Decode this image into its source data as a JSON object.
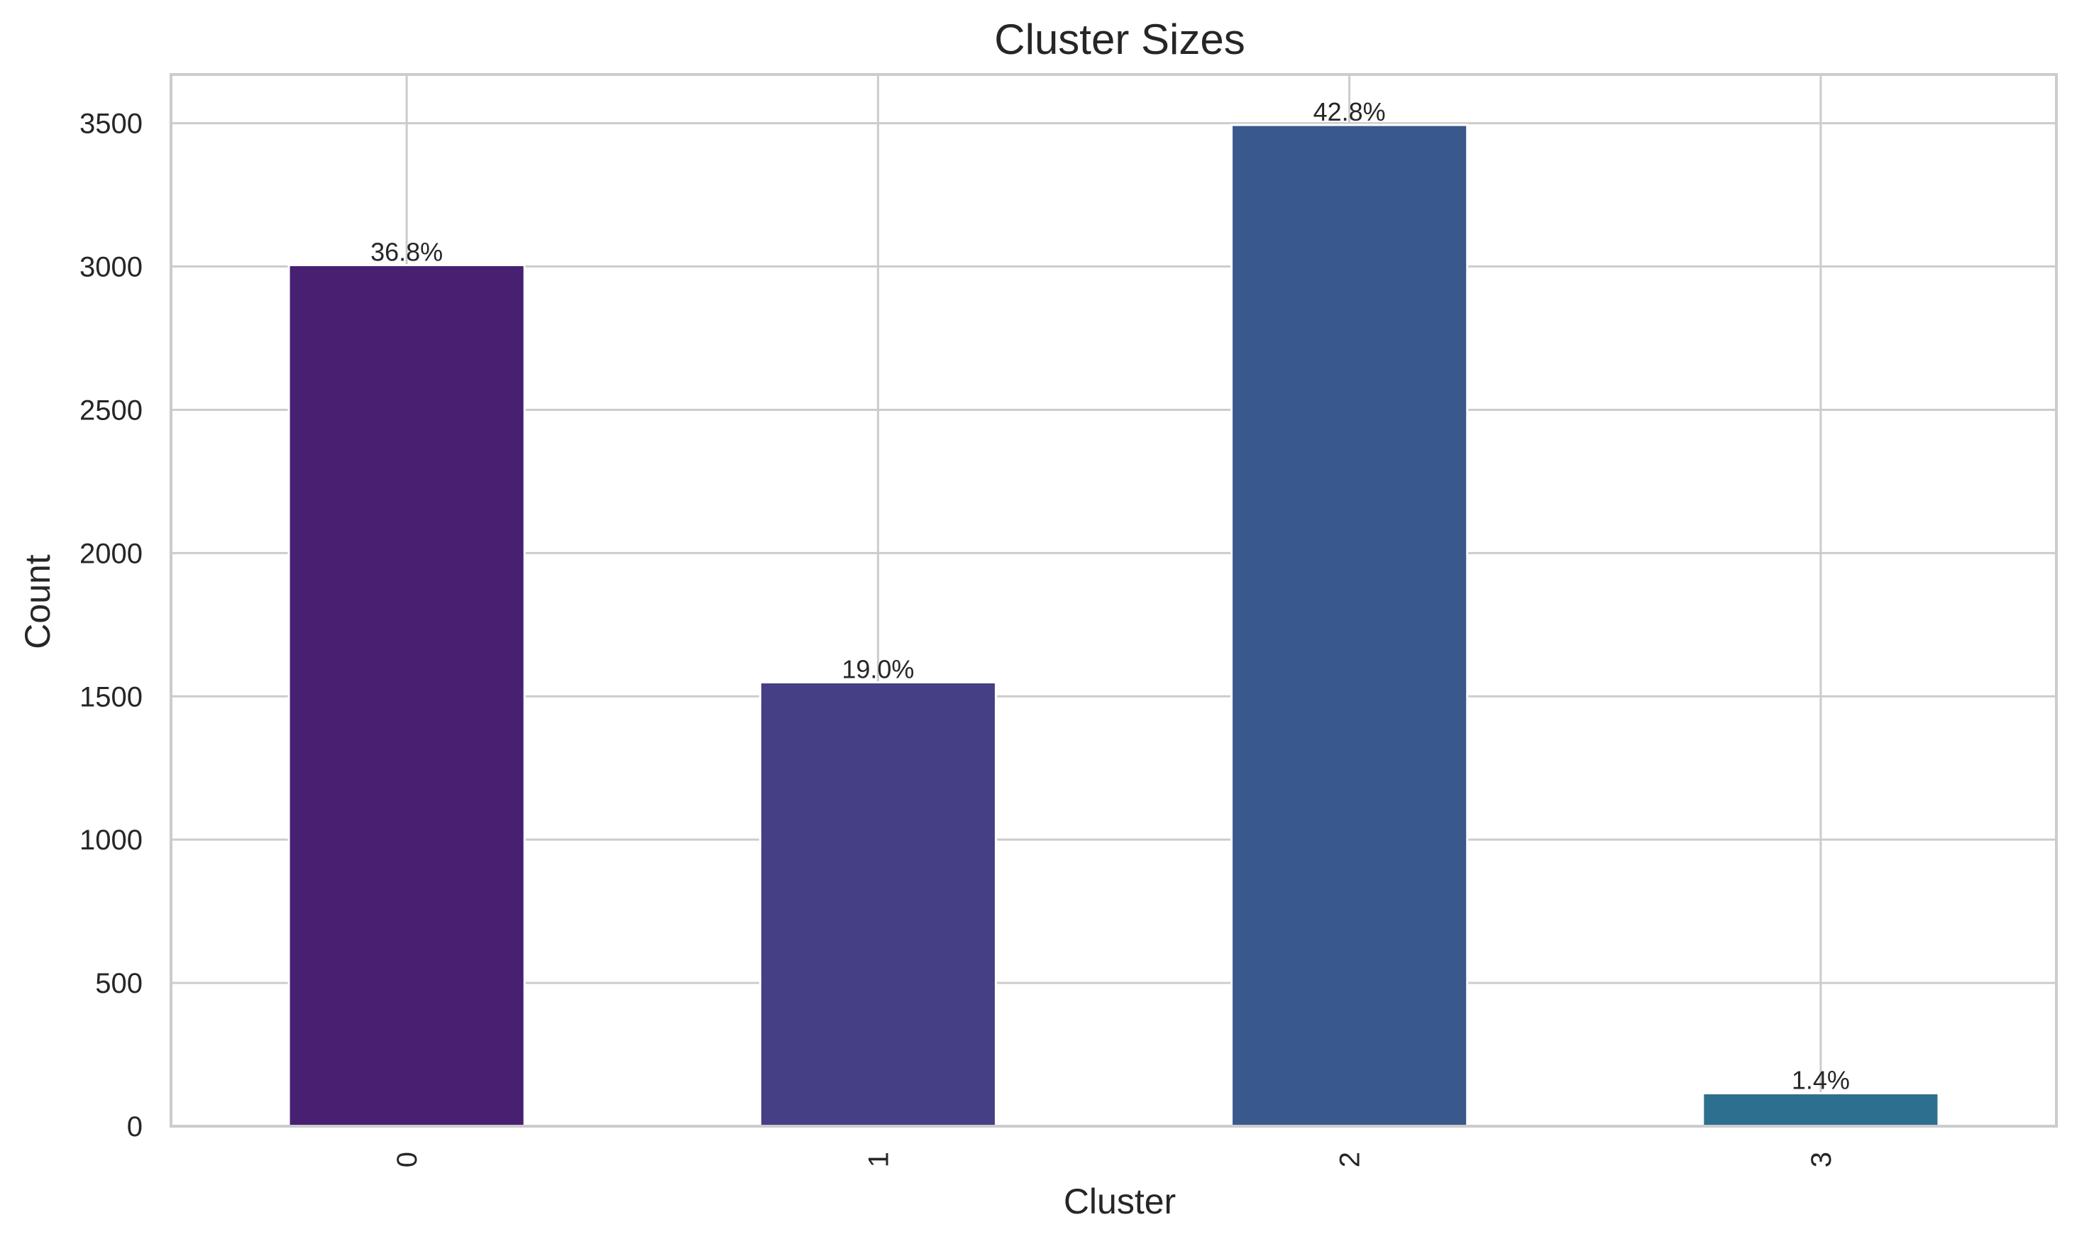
{
  "chart_data": {
    "type": "bar",
    "title": "Cluster Sizes",
    "xlabel": "Cluster",
    "ylabel": "Count",
    "categories": [
      "0",
      "1",
      "2",
      "3"
    ],
    "values": [
      3005,
      1549,
      3494,
      115
    ],
    "bar_labels": [
      "36.8%",
      "19.0%",
      "42.8%",
      "1.4%"
    ],
    "colors": [
      "#482071",
      "#453f85",
      "#39598c",
      "#2d6f8e"
    ],
    "ylim": [
      0,
      3670
    ],
    "yticks": [
      0,
      500,
      1000,
      1500,
      2000,
      2500,
      3000,
      3500
    ],
    "grid": true,
    "legend": "none"
  }
}
